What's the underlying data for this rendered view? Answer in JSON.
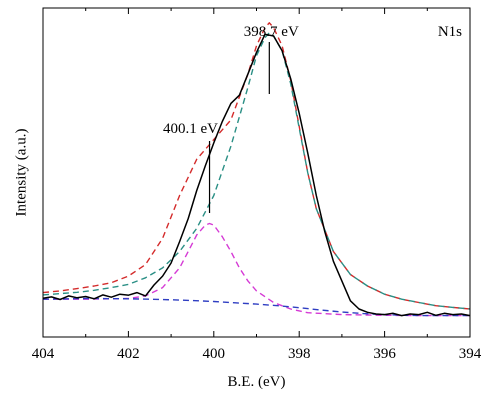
{
  "chart_data": {
    "type": "line",
    "title": "",
    "xlabel": "B.E. (eV)",
    "ylabel": "Intensity (a.u.)",
    "panel_label": "N1s",
    "x_reversed": true,
    "xlim": [
      404,
      394
    ],
    "ylim": [
      0,
      1
    ],
    "xticks": [
      404,
      402,
      400,
      398,
      396,
      394
    ],
    "xtick_labels": [
      "404",
      "402",
      "400",
      "398",
      "396",
      "394"
    ],
    "grid": false,
    "legend": "none",
    "annotations": [
      {
        "text": "398.7 eV",
        "x": 398.7
      },
      {
        "text": "400.1 eV",
        "x": 400.1
      }
    ],
    "series": [
      {
        "color": "#000000",
        "style": "solid",
        "x": [
          404.0,
          403.8,
          403.6,
          403.4,
          403.2,
          403.0,
          402.8,
          402.6,
          402.4,
          402.2,
          402.0,
          401.8,
          401.6,
          401.4,
          401.2,
          401.0,
          400.8,
          400.6,
          400.4,
          400.2,
          400.0,
          399.8,
          399.6,
          399.4,
          399.2,
          399.0,
          398.8,
          398.6,
          398.4,
          398.2,
          398.0,
          397.8,
          397.6,
          397.4,
          397.2,
          397.0,
          396.8,
          396.6,
          396.4,
          396.2,
          396.0,
          395.8,
          395.6,
          395.4,
          395.2,
          395.0,
          394.8,
          394.6,
          394.4,
          394.2,
          394.0
        ],
        "y": [
          0.118,
          0.122,
          0.114,
          0.125,
          0.119,
          0.123,
          0.116,
          0.128,
          0.121,
          0.13,
          0.127,
          0.135,
          0.125,
          0.158,
          0.185,
          0.225,
          0.29,
          0.36,
          0.445,
          0.52,
          0.59,
          0.655,
          0.71,
          0.735,
          0.8,
          0.865,
          0.92,
          0.915,
          0.87,
          0.785,
          0.68,
          0.56,
          0.43,
          0.32,
          0.23,
          0.17,
          0.11,
          0.085,
          0.075,
          0.07,
          0.068,
          0.072,
          0.065,
          0.07,
          0.068,
          0.075,
          0.066,
          0.072,
          0.068,
          0.07,
          0.065
        ]
      },
      {
        "color": "#d42b2b",
        "style": "dashed",
        "x": [
          404.0,
          403.6,
          403.2,
          402.8,
          402.4,
          402.0,
          401.6,
          401.2,
          400.8,
          400.4,
          400.0,
          399.6,
          399.2,
          399.0,
          398.8,
          398.7,
          398.6,
          398.4,
          398.2,
          398.0,
          397.8,
          397.6,
          397.2,
          396.8,
          396.4,
          396.0,
          395.6,
          395.2,
          394.8,
          394.4,
          394.0
        ],
        "y": [
          0.135,
          0.14,
          0.147,
          0.155,
          0.165,
          0.185,
          0.22,
          0.3,
          0.43,
          0.54,
          0.6,
          0.66,
          0.8,
          0.885,
          0.94,
          0.955,
          0.94,
          0.885,
          0.78,
          0.64,
          0.5,
          0.39,
          0.26,
          0.19,
          0.155,
          0.13,
          0.115,
          0.105,
          0.095,
          0.09,
          0.085
        ]
      },
      {
        "color": "#2a8f85",
        "style": "dashed",
        "x": [
          404.0,
          403.6,
          403.2,
          402.8,
          402.4,
          402.0,
          401.6,
          401.2,
          400.8,
          400.4,
          400.0,
          399.6,
          399.2,
          399.0,
          398.8,
          398.7,
          398.6,
          398.4,
          398.2,
          398.0,
          397.8,
          397.6,
          397.2,
          396.8,
          396.4,
          396.0,
          395.6,
          395.2,
          394.8,
          394.4,
          394.0
        ],
        "y": [
          0.128,
          0.132,
          0.136,
          0.142,
          0.15,
          0.16,
          0.18,
          0.21,
          0.26,
          0.33,
          0.43,
          0.58,
          0.76,
          0.855,
          0.91,
          0.925,
          0.915,
          0.87,
          0.77,
          0.635,
          0.5,
          0.39,
          0.26,
          0.19,
          0.155,
          0.13,
          0.115,
          0.105,
          0.095,
          0.09,
          0.085
        ]
      },
      {
        "color": "#d53ad5",
        "style": "dashed",
        "x": [
          404.0,
          403.0,
          402.0,
          401.6,
          401.2,
          400.8,
          400.6,
          400.4,
          400.2,
          400.1,
          400.0,
          399.8,
          399.6,
          399.4,
          399.2,
          399.0,
          398.6,
          398.2,
          397.8,
          397.0,
          396.0,
          395.0,
          394.0
        ],
        "y": [
          0.115,
          0.115,
          0.117,
          0.125,
          0.15,
          0.21,
          0.26,
          0.31,
          0.34,
          0.345,
          0.34,
          0.305,
          0.26,
          0.21,
          0.17,
          0.14,
          0.105,
          0.085,
          0.074,
          0.068,
          0.066,
          0.065,
          0.065
        ]
      },
      {
        "color": "#2f3ec2",
        "style": "dashed",
        "x": [
          404.0,
          403.0,
          402.0,
          401.5,
          401.0,
          400.5,
          400.0,
          399.5,
          399.0,
          398.5,
          398.0,
          397.5,
          397.0,
          396.5,
          396.0,
          395.5,
          395.0,
          394.5,
          394.0
        ],
        "y": [
          0.115,
          0.117,
          0.116,
          0.115,
          0.113,
          0.111,
          0.108,
          0.104,
          0.1,
          0.095,
          0.089,
          0.082,
          0.076,
          0.071,
          0.068,
          0.066,
          0.065,
          0.065,
          0.065
        ]
      }
    ]
  }
}
